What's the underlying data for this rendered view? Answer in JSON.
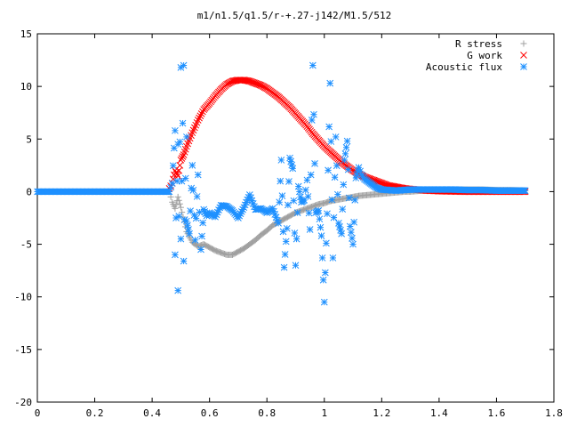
{
  "chart_data": {
    "type": "scatter",
    "title": "m1/n1.5/q1.5/r-+.27-j142/M1.5/512",
    "xlabel": "",
    "ylabel": "",
    "xlim": [
      0,
      1.8
    ],
    "ylim": [
      -20,
      15
    ],
    "xticks": [
      0,
      0.2,
      0.4,
      0.6,
      0.8,
      1,
      1.2,
      1.4,
      1.6,
      1.8
    ],
    "xtick_labels": [
      "0",
      "0.2",
      "0.4",
      "0.6",
      "0.8",
      "1",
      "1.2",
      "1.4",
      "1.6",
      "1.8"
    ],
    "yticks": [
      -20,
      -15,
      -10,
      -5,
      0,
      5,
      10,
      15
    ],
    "ytick_labels": [
      "-20",
      "-15",
      "-10",
      "-5",
      "0",
      "5",
      "10",
      "15"
    ],
    "grid": false,
    "legend_position": "top-right",
    "series": [
      {
        "name": "R stress",
        "marker": "plus",
        "color": "#a0a0a0",
        "x": [
          0,
          0.46,
          0.47,
          0.48,
          0.49,
          0.5,
          0.52,
          0.54,
          0.56,
          0.58,
          0.6,
          0.62,
          0.64,
          0.66,
          0.68,
          0.7,
          0.72,
          0.74,
          0.76,
          0.78,
          0.8,
          0.82,
          0.84,
          0.86,
          0.88,
          0.9,
          0.92,
          0.94,
          0.96,
          0.98,
          1.0,
          1.02,
          1.04,
          1.06,
          1.08,
          1.1,
          1.12,
          1.14,
          1.16,
          1.18,
          1.2,
          1.22,
          1.24,
          1.26,
          1.28,
          1.3,
          1.32,
          1.34,
          1.36,
          1.38,
          1.4,
          1.45,
          1.5,
          1.55,
          1.6,
          1.65,
          1.7
        ],
        "y": [
          0,
          0,
          -1,
          -1.6,
          -0.5,
          -1.5,
          -3.8,
          -4.8,
          -5.2,
          -5.0,
          -5.3,
          -5.6,
          -5.8,
          -6.0,
          -6.0,
          -5.7,
          -5.4,
          -5.0,
          -4.6,
          -4.1,
          -3.7,
          -3.2,
          -2.9,
          -2.6,
          -2.3,
          -2.0,
          -1.8,
          -1.6,
          -1.4,
          -1.2,
          -1.1,
          -0.9,
          -0.8,
          -0.7,
          -0.6,
          -0.5,
          -0.4,
          -0.35,
          -0.3,
          -0.25,
          -0.2,
          -0.15,
          -0.1,
          -0.05,
          0,
          0,
          0.05,
          0.1,
          0.1,
          0.15,
          0.2,
          0.2,
          0.2,
          0.2,
          0.15,
          0.15,
          0.1
        ]
      },
      {
        "name": "G work",
        "marker": "cross",
        "color": "#ff0000",
        "x": [
          0.46,
          0.47,
          0.48,
          0.49,
          0.5,
          0.51,
          0.52,
          0.54,
          0.56,
          0.58,
          0.6,
          0.62,
          0.64,
          0.66,
          0.68,
          0.7,
          0.72,
          0.74,
          0.76,
          0.78,
          0.8,
          0.82,
          0.84,
          0.86,
          0.88,
          0.9,
          0.92,
          0.94,
          0.96,
          0.98,
          1.0,
          1.02,
          1.04,
          1.06,
          1.08,
          1.1,
          1.12,
          1.14,
          1.16,
          1.18,
          1.2,
          1.22,
          1.24,
          1.26,
          1.28,
          1.3,
          1.32,
          1.34,
          1.36,
          1.38,
          1.4,
          1.45,
          1.5,
          1.55,
          1.6,
          1.65,
          1.7
        ],
        "y": [
          0.3,
          0.8,
          2.0,
          1.5,
          3.0,
          3.5,
          4.3,
          5.6,
          6.8,
          7.8,
          8.4,
          9.1,
          9.7,
          10.2,
          10.5,
          10.6,
          10.6,
          10.5,
          10.3,
          10.1,
          9.8,
          9.4,
          9.0,
          8.5,
          8.0,
          7.4,
          6.8,
          6.2,
          5.5,
          4.9,
          4.3,
          3.8,
          3.3,
          2.8,
          2.4,
          2.0,
          1.7,
          1.4,
          1.2,
          1.0,
          0.8,
          0.6,
          0.5,
          0.4,
          0.3,
          0.25,
          0.2,
          0.15,
          0.1,
          0.08,
          0.05,
          0.02,
          0,
          0,
          0,
          0,
          0
        ]
      },
      {
        "name": "Acoustic flux",
        "marker": "star",
        "color": "#1e90ff",
        "x": [
          0,
          0.46,
          0.47,
          0.48,
          0.48,
          0.49,
          0.49,
          0.5,
          0.5,
          0.51,
          0.51,
          0.52,
          0.52,
          0.53,
          0.54,
          0.55,
          0.56,
          0.57,
          0.58,
          0.59,
          0.6,
          0.62,
          0.64,
          0.66,
          0.68,
          0.7,
          0.72,
          0.74,
          0.76,
          0.78,
          0.8,
          0.82,
          0.84,
          0.85,
          0.86,
          0.87,
          0.88,
          0.89,
          0.9,
          0.91,
          0.92,
          0.93,
          0.94,
          0.95,
          0.96,
          0.97,
          0.98,
          0.99,
          1.0,
          1.01,
          1.02,
          1.03,
          1.04,
          1.05,
          1.06,
          1.07,
          1.08,
          1.09,
          1.1,
          1.11,
          1.12,
          1.13,
          1.14,
          1.16,
          1.18,
          1.2,
          1.25,
          1.3,
          1.35,
          1.4,
          1.45,
          1.5,
          1.55,
          1.6,
          1.65,
          1.7
        ],
        "y": [
          0,
          0,
          0.8,
          5.8,
          -6.0,
          4.5,
          -9.4,
          11.8,
          -4.5,
          12.0,
          -6.6,
          5.2,
          -2.8,
          -4.0,
          2.5,
          -4.6,
          1.6,
          -5.5,
          -1.7,
          -2.3,
          -2.0,
          -2.4,
          -1.3,
          -1.4,
          -1.8,
          -2.5,
          -1.5,
          -0.3,
          -1.7,
          -1.6,
          -2.0,
          -1.6,
          -3.0,
          3.0,
          -7.2,
          -3.5,
          3.2,
          2.2,
          -7.0,
          0.5,
          -1.0,
          -0.8,
          1.1,
          -3.6,
          12.0,
          -2.0,
          -1.8,
          -4.2,
          -10.5,
          -2.1,
          10.3,
          -6.3,
          5.2,
          -3.0,
          -4.0,
          3.0,
          4.8,
          -3.3,
          -5.0,
          1.3,
          2.3,
          1.6,
          1.2,
          0.8,
          0.4,
          0.2,
          0.1,
          0.2,
          0.2,
          0.2,
          0.2,
          0.15,
          0.15,
          0.1,
          0.1,
          0.1
        ]
      }
    ]
  }
}
